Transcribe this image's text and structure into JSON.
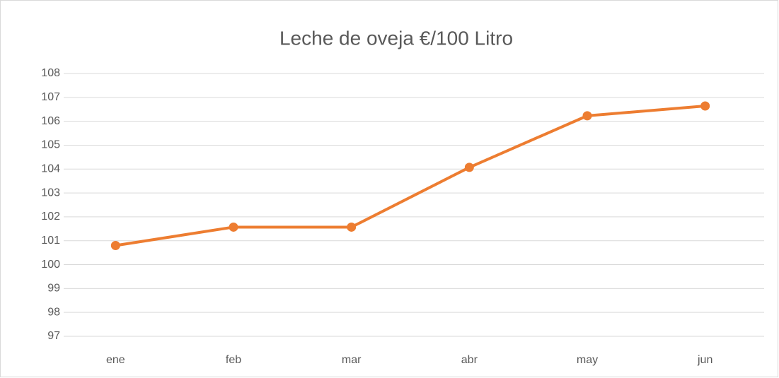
{
  "chart_data": {
    "type": "line",
    "title": "Leche de oveja €/100 Litro",
    "categories": [
      "ene",
      "feb",
      "mar",
      "abr",
      "may",
      "jun"
    ],
    "series": [
      {
        "name": "Leche de oveja €/100 Litro",
        "color": "#ed7d31",
        "values": [
          100.8,
          101.57,
          101.57,
          104.07,
          106.23,
          106.64
        ]
      }
    ],
    "ylim": [
      97,
      108
    ],
    "yticks": [
      97,
      98,
      99,
      100,
      101,
      102,
      103,
      104,
      105,
      106,
      107,
      108
    ],
    "grid": true
  }
}
